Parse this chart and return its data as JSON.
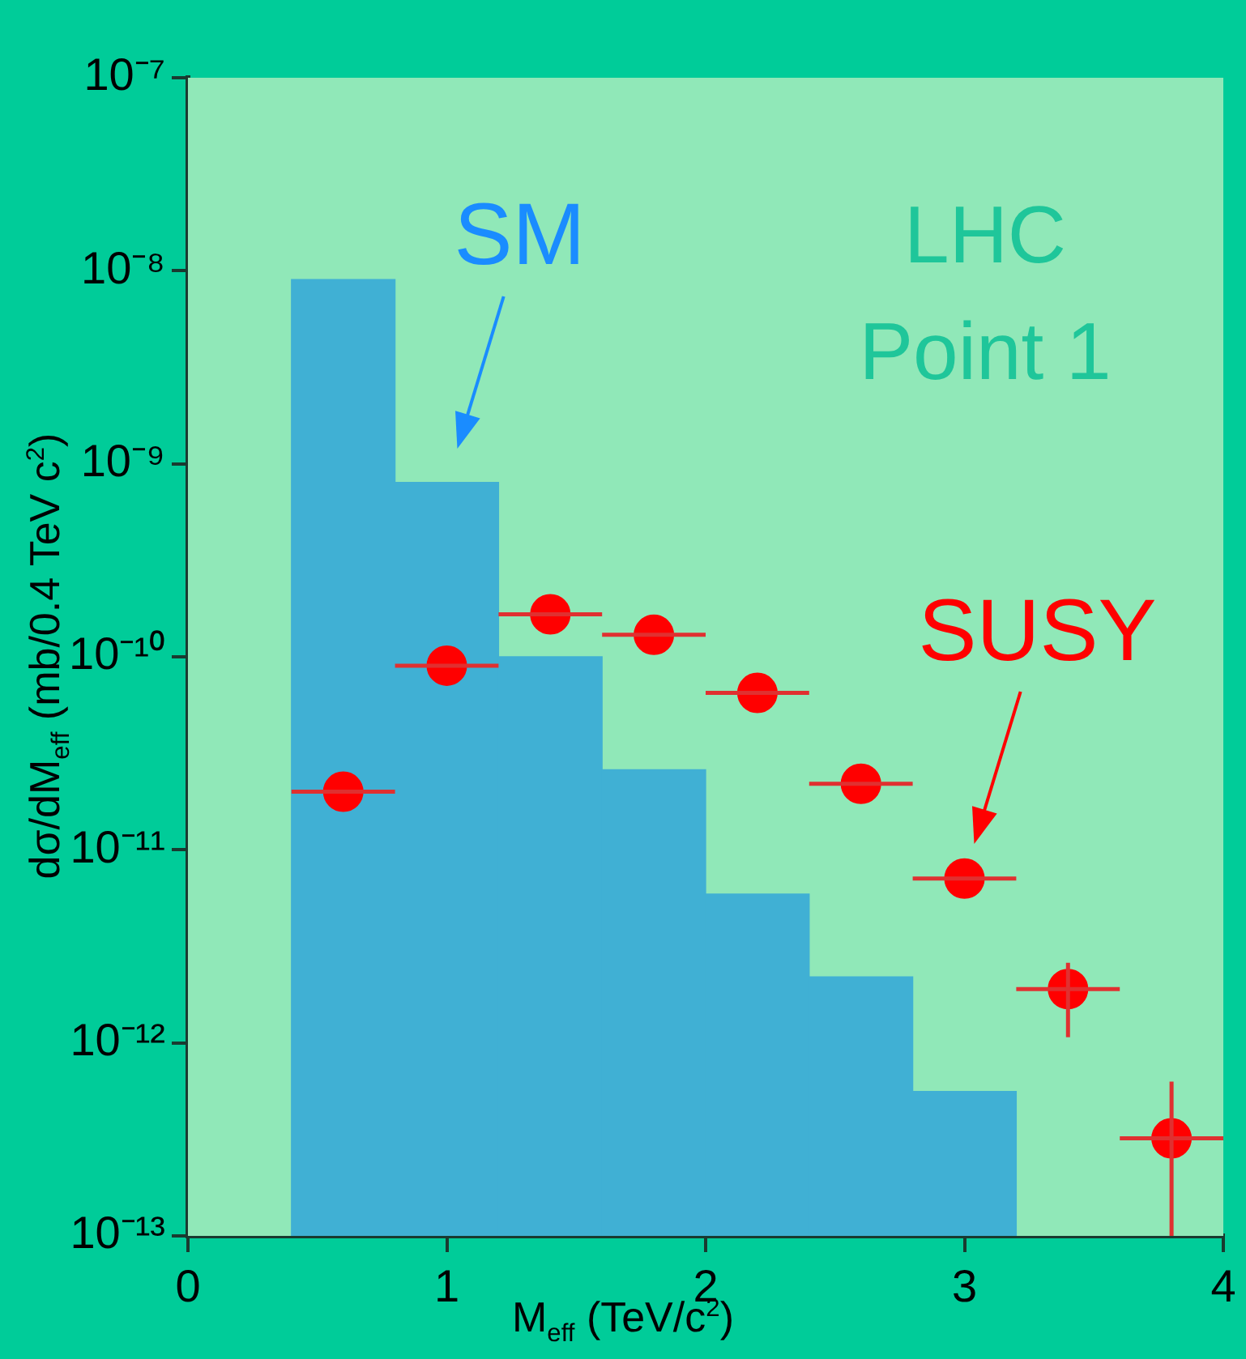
{
  "chart_data": {
    "type": "histogram",
    "xlabel": "M$_{eff}$ (TeV/c$^{2}$)",
    "ylabel": "dσ/dM$_{eff}$ (mb/0.4 TeV c$^{2}$)",
    "log": "y",
    "xlim": [
      0,
      4
    ],
    "xticks": [
      0,
      1,
      2,
      3,
      4
    ],
    "ylim": [
      1e-13,
      1e-07
    ],
    "yticks": [
      {
        "value": 1e-13,
        "label": "10⁻¹³"
      },
      {
        "value": 1e-12,
        "label": "10⁻¹²"
      },
      {
        "value": 1e-11,
        "label": "10⁻¹¹"
      },
      {
        "value": 1e-10,
        "label": "10⁻¹⁰"
      },
      {
        "value": 1e-09,
        "label": "10⁻⁹"
      },
      {
        "value": 1e-08,
        "label": "10⁻⁸"
      },
      {
        "value": 1e-07,
        "label": "10⁻⁷"
      }
    ],
    "bins": [
      0.4,
      0.8,
      1.2,
      1.6,
      2.0,
      2.4,
      2.8,
      3.2
    ],
    "series": [
      {
        "color": "#40b0d4",
        "values": [
          9e-09,
          8e-10,
          1e-10,
          2.6e-11,
          5.9e-12,
          2.2e-12,
          5.6e-13
        ]
      },
      {
        "type": "scatter",
        "color": "#ff0000",
        "x": [
          0.6,
          1.0,
          1.4,
          1.8,
          2.2,
          2.6,
          3.0,
          3.4,
          3.8
        ],
        "values": [
          2e-11,
          9e-11,
          1.66e-10,
          1.3e-10,
          6.5e-11,
          2.2e-11,
          7.1e-12,
          1.9e-12,
          3.2e-13
        ],
        "xerrors": [
          0.2,
          0.2,
          0.2,
          0.2,
          0.2,
          0.2,
          0.2,
          0.2,
          0.2
        ],
        "errors": [
          null,
          null,
          null,
          null,
          null,
          null,
          null,
          [
            1.07e-12,
            2.6e-12
          ],
          [
            1e-13,
            6.3e-13
          ]
        ]
      }
    ],
    "marker": "circle",
    "annotations": [
      {
        "text": "SM",
        "x": 1.0,
        "y": 8e-10
      },
      "LHC\nPoint 1",
      {
        "text": "SUSY",
        "x": 3.0,
        "y": 7.1e-12
      }
    ]
  }
}
